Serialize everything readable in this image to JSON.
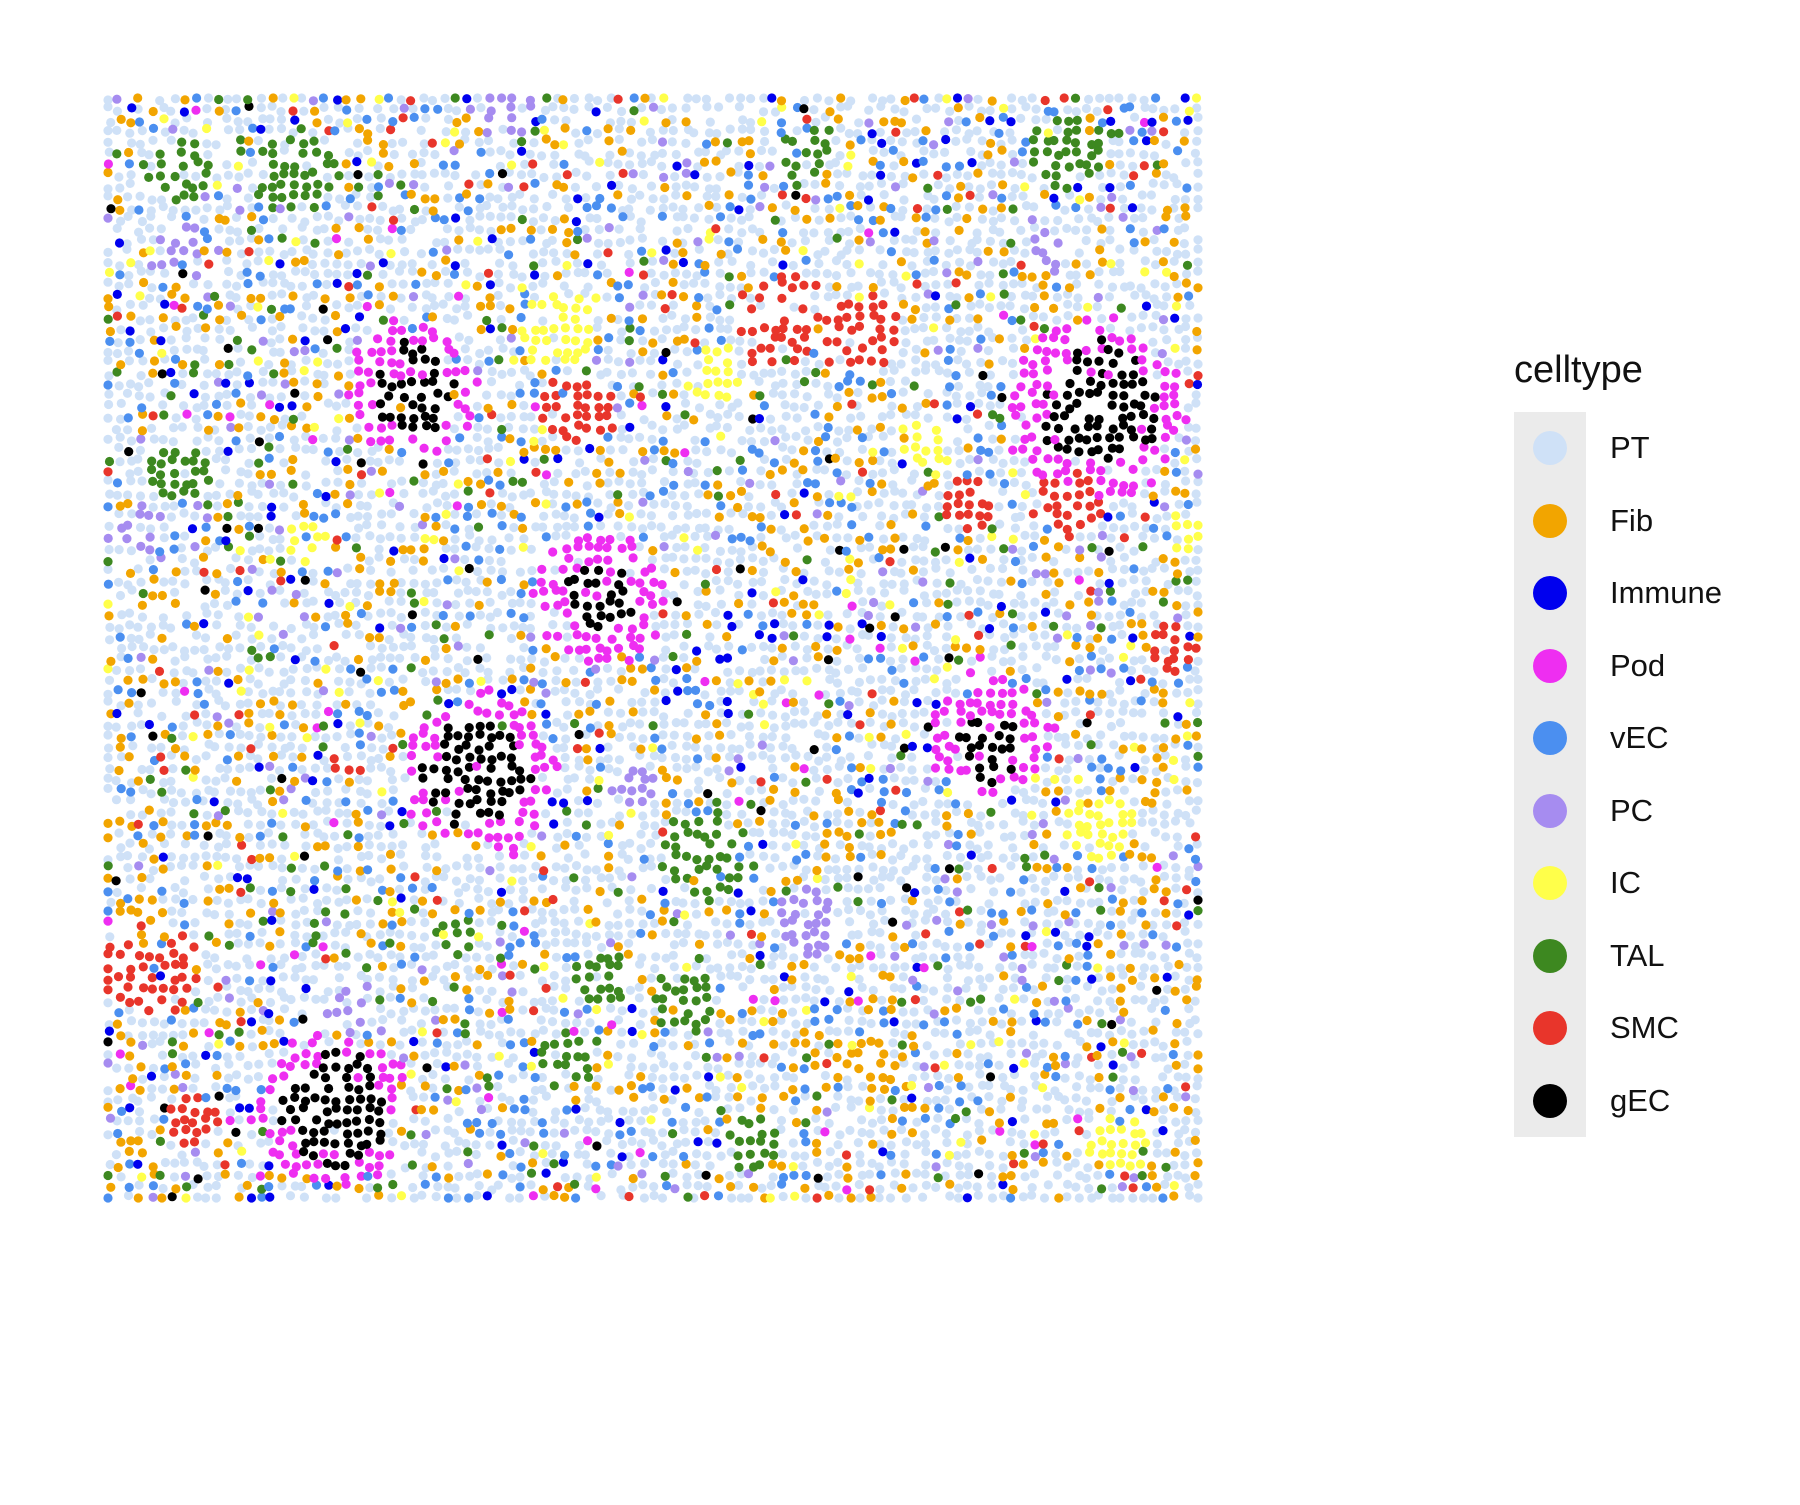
{
  "chart_data": {
    "type": "scatter",
    "title": "",
    "xlabel": "",
    "ylabel": "",
    "axes_visible": false,
    "grid": false,
    "xlim": [
      0,
      100
    ],
    "ylim": [
      0,
      100
    ],
    "legend_title": "celltype",
    "legend_position": "right",
    "categories": [
      {
        "name": "PT",
        "color": "#cfe1f7"
      },
      {
        "name": "Fib",
        "color": "#f2a500"
      },
      {
        "name": "Immune",
        "color": "#0000ee"
      },
      {
        "name": "Pod",
        "color": "#ee2ef1"
      },
      {
        "name": "vEC",
        "color": "#4b8ff0"
      },
      {
        "name": "PC",
        "color": "#a68cf0"
      },
      {
        "name": "IC",
        "color": "#ffff4a"
      },
      {
        "name": "TAL",
        "color": "#3d8820"
      },
      {
        "name": "SMC",
        "color": "#e8352b"
      },
      {
        "name": "gEC",
        "color": "#000000"
      }
    ],
    "background_celltype": "PT",
    "regions": [
      {
        "celltype": "Pod",
        "center": [
          28,
          73.5
        ],
        "radius": 6.0
      },
      {
        "celltype": "gEC",
        "center": [
          28,
          73.5
        ],
        "radius": 4.0
      },
      {
        "celltype": "Pod",
        "center": [
          45,
          54.5
        ],
        "radius": 6.0
      },
      {
        "celltype": "gEC",
        "center": [
          45,
          54.5
        ],
        "radius": 3.5
      },
      {
        "celltype": "Pod",
        "center": [
          34,
          38.5
        ],
        "radius": 7.0
      },
      {
        "celltype": "gEC",
        "center": [
          34,
          38.5
        ],
        "radius": 5.0
      },
      {
        "celltype": "Pod",
        "center": [
          90.5,
          71.5
        ],
        "radius": 8.0
      },
      {
        "celltype": "gEC",
        "center": [
          91,
          72
        ],
        "radius": 5.5
      },
      {
        "celltype": "Pod",
        "center": [
          81,
          42
        ],
        "radius": 5.5
      },
      {
        "celltype": "gEC",
        "center": [
          81,
          41
        ],
        "radius": 3.0
      },
      {
        "celltype": "Pod",
        "center": [
          20.5,
          8
        ],
        "radius": 7.0
      },
      {
        "celltype": "gEC",
        "center": [
          20.5,
          8
        ],
        "radius": 5.0
      },
      {
        "celltype": "SMC",
        "center": [
          43,
          71.5
        ],
        "radius": 3.5
      },
      {
        "celltype": "SMC",
        "center": [
          62,
          80
        ],
        "radius": 4.5
      },
      {
        "celltype": "SMC",
        "center": [
          69,
          78.5
        ],
        "radius": 3.5
      },
      {
        "celltype": "SMC",
        "center": [
          88.5,
          63
        ],
        "radius": 3.0
      },
      {
        "celltype": "SMC",
        "center": [
          79,
          63
        ],
        "radius": 2.5
      },
      {
        "celltype": "SMC",
        "center": [
          98,
          50
        ],
        "radius": 2.5
      },
      {
        "celltype": "SMC",
        "center": [
          4,
          21
        ],
        "radius": 4.5
      },
      {
        "celltype": "SMC",
        "center": [
          8,
          7
        ],
        "radius": 2.5
      },
      {
        "celltype": "TAL",
        "center": [
          17,
          93
        ],
        "radius": 4.0
      },
      {
        "celltype": "TAL",
        "center": [
          6.5,
          93
        ],
        "radius": 3.0
      },
      {
        "celltype": "TAL",
        "center": [
          88,
          95
        ],
        "radius": 3.5
      },
      {
        "celltype": "TAL",
        "center": [
          64,
          95
        ],
        "radius": 2.5
      },
      {
        "celltype": "TAL",
        "center": [
          6.5,
          66
        ],
        "radius": 3.0
      },
      {
        "celltype": "TAL",
        "center": [
          55,
          31
        ],
        "radius": 4.0
      },
      {
        "celltype": "TAL",
        "center": [
          53,
          18
        ],
        "radius": 3.0
      },
      {
        "celltype": "TAL",
        "center": [
          42,
          12.5
        ],
        "radius": 2.5
      },
      {
        "celltype": "TAL",
        "center": [
          32,
          24
        ],
        "radius": 2.0
      },
      {
        "celltype": "TAL",
        "center": [
          59,
          5
        ],
        "radius": 2.5
      },
      {
        "celltype": "TAL",
        "center": [
          45.5,
          20
        ],
        "radius": 2.5
      },
      {
        "celltype": "IC",
        "center": [
          41,
          79
        ],
        "radius": 3.5
      },
      {
        "celltype": "IC",
        "center": [
          55.5,
          75
        ],
        "radius": 2.5
      },
      {
        "celltype": "IC",
        "center": [
          75.5,
          68
        ],
        "radius": 2.5
      },
      {
        "celltype": "IC",
        "center": [
          18,
          60
        ],
        "radius": 2.0
      },
      {
        "celltype": "IC",
        "center": [
          91,
          34
        ],
        "radius": 3.0
      },
      {
        "celltype": "IC",
        "center": [
          93,
          5
        ],
        "radius": 3.0
      },
      {
        "celltype": "IC",
        "center": [
          98.5,
          60
        ],
        "radius": 2.0
      },
      {
        "celltype": "PC",
        "center": [
          37,
          98.5
        ],
        "radius": 2.5
      },
      {
        "celltype": "PC",
        "center": [
          6.5,
          87
        ],
        "radius": 2.0
      },
      {
        "celltype": "PC",
        "center": [
          3,
          61
        ],
        "radius": 2.0
      },
      {
        "celltype": "PC",
        "center": [
          48,
          37.5
        ],
        "radius": 2.0
      },
      {
        "celltype": "PC",
        "center": [
          64,
          25
        ],
        "radius": 3.0
      },
      {
        "celltype": "PC",
        "center": [
          22,
          17
        ],
        "radius": 2.0
      },
      {
        "celltype": "PC",
        "center": [
          86,
          86
        ],
        "radius": 2.0
      },
      {
        "celltype": "Fib",
        "center": [
          3,
          25
        ],
        "radius": 2.5
      },
      {
        "celltype": "Fib",
        "center": [
          70,
          12
        ],
        "radius": 2.5
      },
      {
        "celltype": "vEC",
        "center": [
          53,
          45.5
        ],
        "radius": 1.5
      },
      {
        "celltype": "Immune",
        "center": [
          52,
          45.5
        ],
        "radius": 1.0
      }
    ],
    "scatter_mix": {
      "PT": 0.62,
      "Fib": 0.13,
      "vEC": 0.09,
      "Immune": 0.03,
      "PC": 0.03,
      "IC": 0.03,
      "TAL": 0.03,
      "SMC": 0.02,
      "Pod": 0.01,
      "gEC": 0.01
    }
  }
}
